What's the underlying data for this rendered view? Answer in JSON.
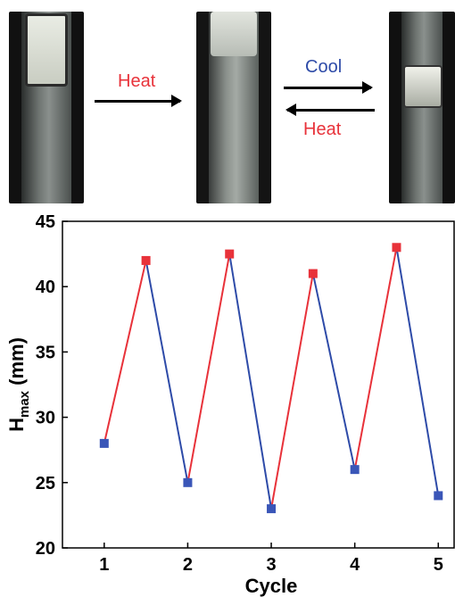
{
  "panel_labels": {
    "heat_top": "Heat",
    "cool": "Cool",
    "heat_bottom": "Heat"
  },
  "colors": {
    "heat": "#e8323a",
    "cool": "#2e4ba8",
    "heat_marker": "#e8323a",
    "cool_marker": "#3a56b8"
  },
  "chart_data": {
    "type": "line",
    "xlabel": "Cycle",
    "ylabel_main": "H",
    "ylabel_sub": "max",
    "ylabel_unit": " (mm)",
    "xlim": [
      0.5,
      5.2
    ],
    "ylim": [
      20,
      45
    ],
    "xticks": [
      1,
      2,
      3,
      4,
      5
    ],
    "yticks": [
      20,
      25,
      30,
      35,
      40,
      45
    ],
    "points": [
      {
        "x": 1.0,
        "y": 28,
        "state": "cool"
      },
      {
        "x": 1.5,
        "y": 42,
        "state": "heat"
      },
      {
        "x": 2.0,
        "y": 25,
        "state": "cool"
      },
      {
        "x": 2.5,
        "y": 42.5,
        "state": "heat"
      },
      {
        "x": 3.0,
        "y": 23,
        "state": "cool"
      },
      {
        "x": 3.5,
        "y": 41,
        "state": "heat"
      },
      {
        "x": 4.0,
        "y": 26,
        "state": "cool"
      },
      {
        "x": 4.5,
        "y": 43,
        "state": "heat"
      },
      {
        "x": 5.0,
        "y": 24,
        "state": "cool"
      }
    ]
  }
}
